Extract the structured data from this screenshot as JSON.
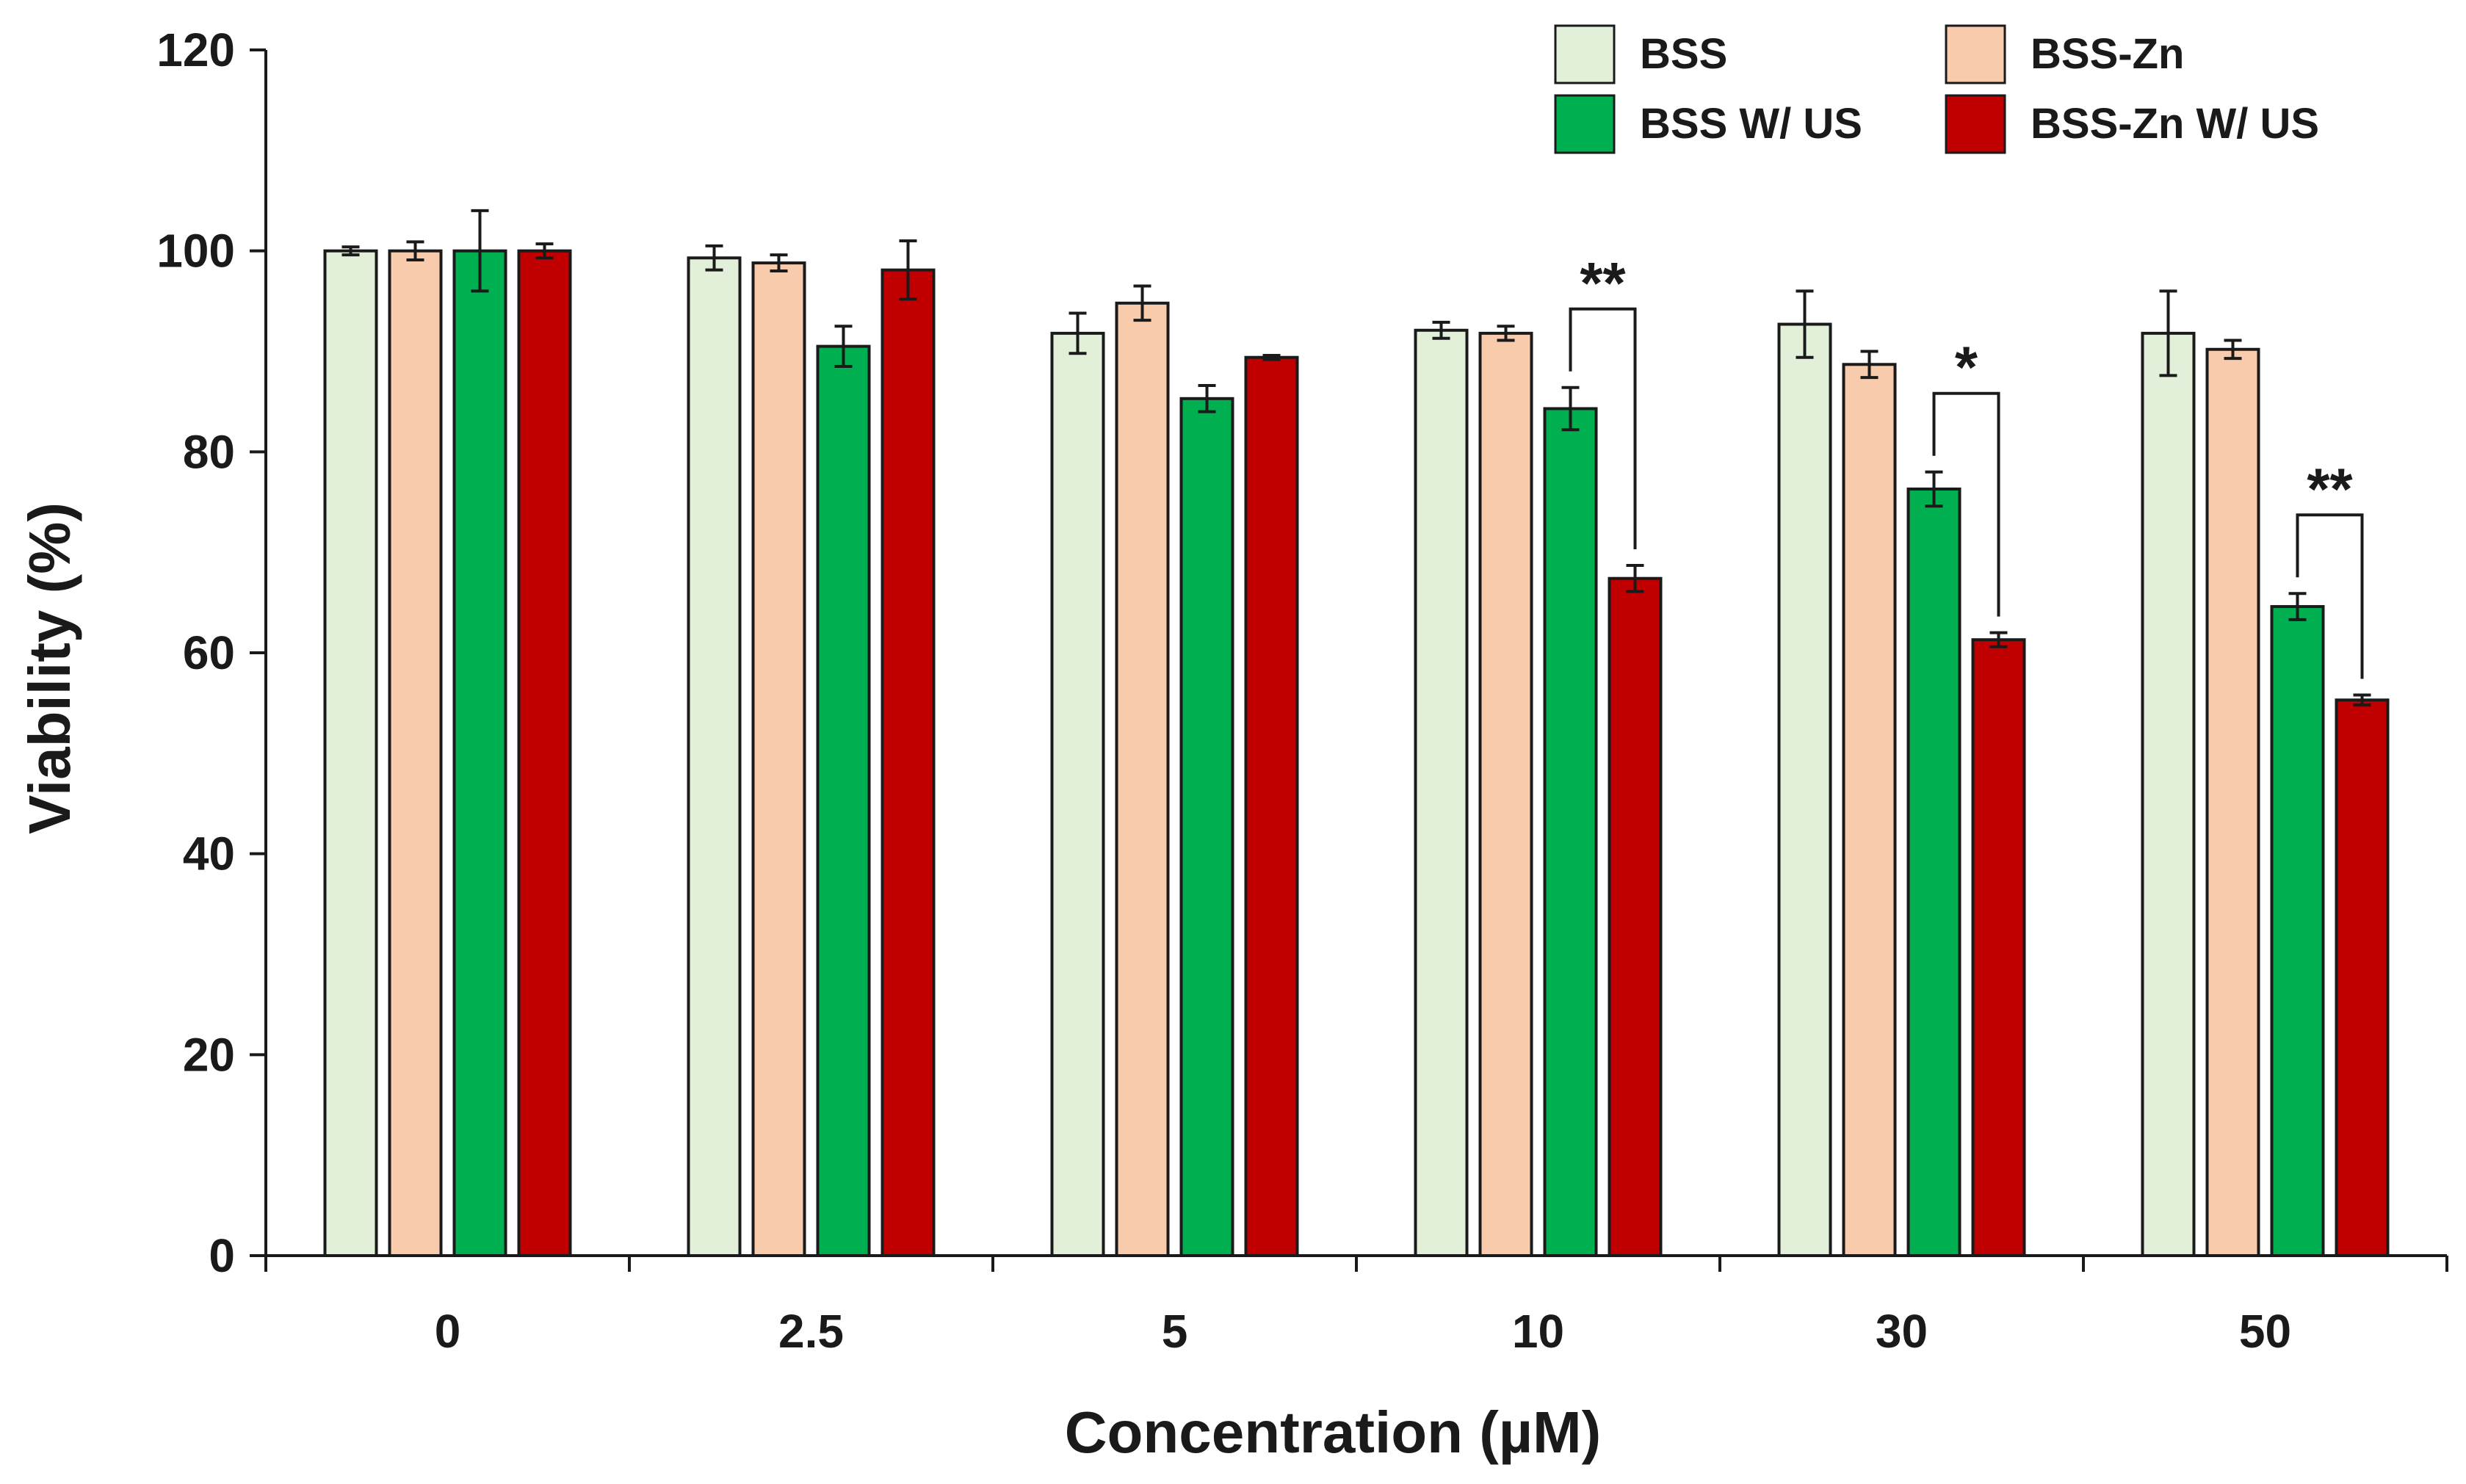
{
  "chart_data": {
    "type": "bar",
    "title": "",
    "xlabel": "Concentration (µM)",
    "ylabel": "Viability (%)",
    "ylim": [
      0,
      120
    ],
    "yticks": [
      0,
      20,
      40,
      60,
      80,
      100,
      120
    ],
    "grid": false,
    "legend_position": "top-right",
    "categories": [
      "0",
      "2.5",
      "5",
      "10",
      "30",
      "50"
    ],
    "series": [
      {
        "name": "BSS",
        "color": "#e2f0d9",
        "values": [
          100,
          99.3,
          91.8,
          92.1,
          92.7,
          91.8
        ],
        "errors": [
          0.4,
          1.2,
          2.0,
          0.8,
          3.3,
          4.2
        ]
      },
      {
        "name": "BSS-Zn",
        "color": "#f8cbad",
        "values": [
          100,
          98.8,
          94.8,
          91.8,
          88.7,
          90.2
        ],
        "errors": [
          0.9,
          0.8,
          1.7,
          0.7,
          1.3,
          0.9
        ]
      },
      {
        "name": "BSS W/ US",
        "color": "#00b050",
        "values": [
          100,
          90.5,
          85.3,
          84.3,
          76.3,
          64.6
        ],
        "errors": [
          4.0,
          2.0,
          1.3,
          2.1,
          1.7,
          1.3
        ]
      },
      {
        "name": "BSS-Zn W/ US",
        "color": "#c00000",
        "values": [
          100,
          98.1,
          89.4,
          67.4,
          61.3,
          55.3
        ],
        "errors": [
          0.7,
          2.9,
          0.2,
          1.3,
          0.7,
          0.5
        ]
      }
    ],
    "significance": [
      {
        "category_index": 3,
        "label": "**"
      },
      {
        "category_index": 4,
        "label": "*"
      },
      {
        "category_index": 5,
        "label": "**"
      }
    ]
  }
}
